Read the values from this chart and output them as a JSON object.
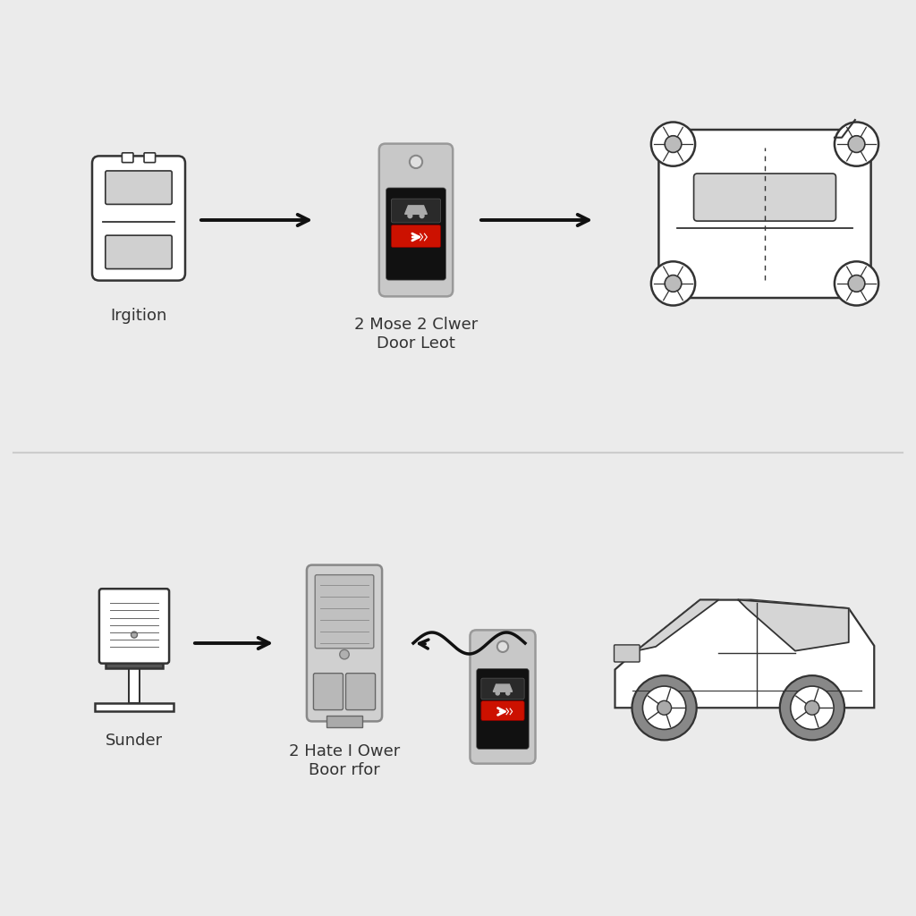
{
  "bg_color": "#ebebeb",
  "top_section": {
    "label1": "Irgition",
    "label2": "2 Mose 2 Clwer\nDoor Leot"
  },
  "bottom_section": {
    "label1": "Sunder",
    "label2": "2 Hate I Ower\nBoor rfor"
  },
  "line_color": "#333333",
  "arrow_color": "#111111",
  "text_color": "#333333",
  "font_size": 13,
  "divider_color": "#cccccc",
  "section_bg": "#ebebeb"
}
